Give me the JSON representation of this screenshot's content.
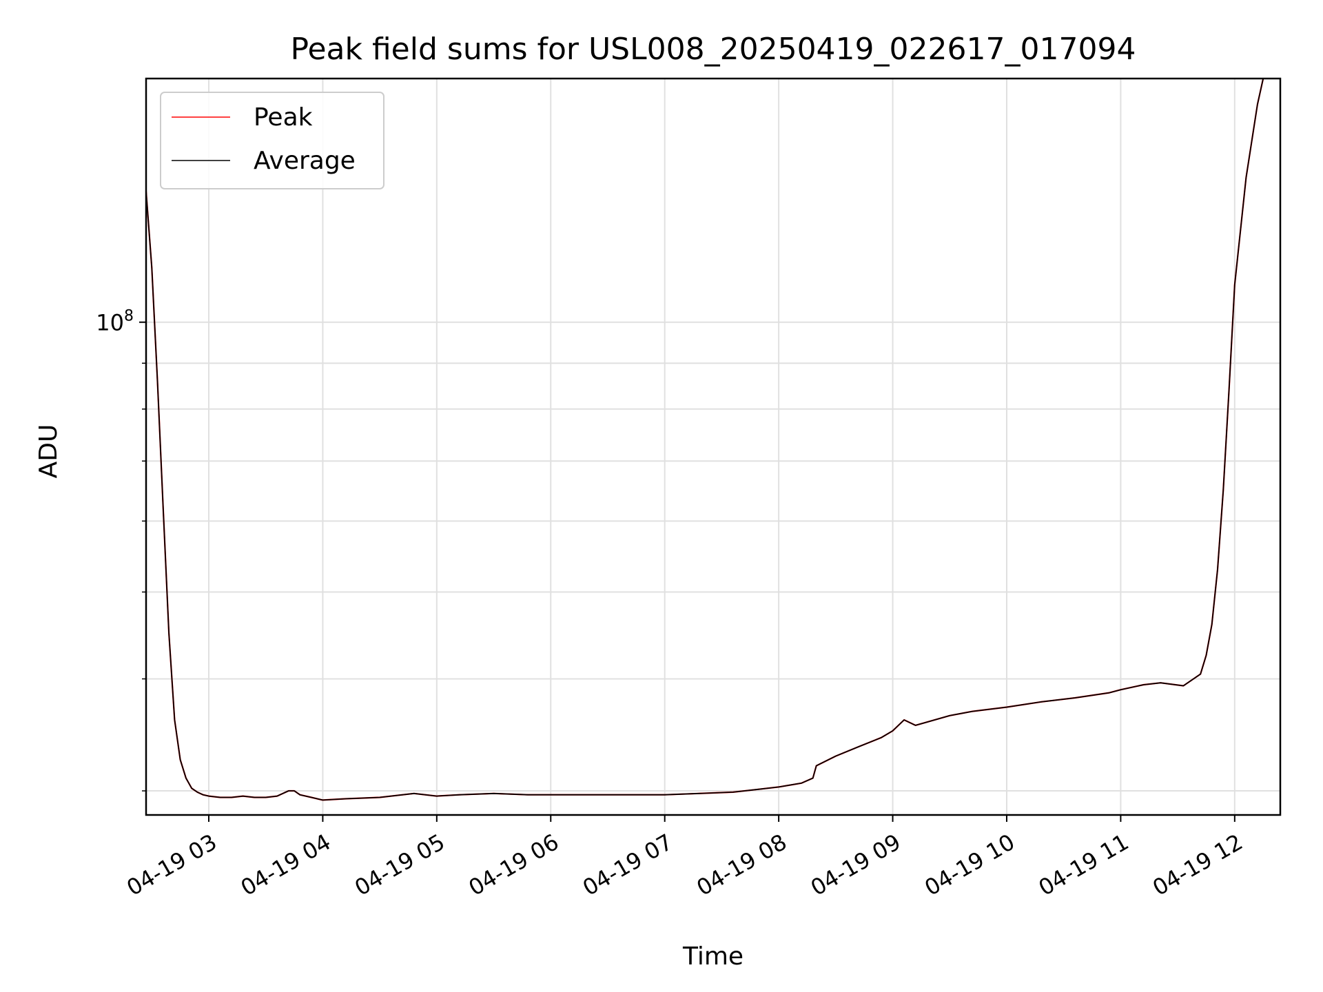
{
  "chart_data": {
    "type": "line",
    "title": "Peak field sums for USL008_20250419_022617_017094",
    "xlabel": "Time",
    "ylabel": "ADU",
    "yscale": "log",
    "xlim": [
      2.45,
      12.4
    ],
    "ylim": [
      28200000.0,
      187000000.0
    ],
    "x_unit": "hour of day on 04-19",
    "x_ticks": [
      {
        "value": 3,
        "label": "04-19 03"
      },
      {
        "value": 4,
        "label": "04-19 04"
      },
      {
        "value": 5,
        "label": "04-19 05"
      },
      {
        "value": 6,
        "label": "04-19 06"
      },
      {
        "value": 7,
        "label": "04-19 07"
      },
      {
        "value": 8,
        "label": "04-19 08"
      },
      {
        "value": 9,
        "label": "04-19 09"
      },
      {
        "value": 10,
        "label": "04-19 10"
      },
      {
        "value": 11,
        "label": "04-19 11"
      },
      {
        "value": 12,
        "label": "04-19 12"
      }
    ],
    "y_major_ticks": [
      {
        "value": 100000000.0,
        "base": "10",
        "exponent": "8"
      }
    ],
    "y_minor_ticks": [
      30000000.0,
      40000000.0,
      50000000.0,
      60000000.0,
      70000000.0,
      80000000.0,
      90000000.0
    ],
    "grid": true,
    "legend_position": "top-left",
    "series": [
      {
        "name": "Peak",
        "color": "#ff0000",
        "x": [
          2.45,
          2.5,
          2.55,
          2.6,
          2.65,
          2.7,
          2.75,
          2.8,
          2.85,
          2.9,
          2.95,
          3.0,
          3.1,
          3.2,
          3.3,
          3.4,
          3.5,
          3.6,
          3.7,
          3.75,
          3.8,
          3.9,
          4.0,
          4.2,
          4.5,
          4.8,
          5.0,
          5.2,
          5.5,
          5.8,
          6.0,
          6.3,
          6.6,
          7.0,
          7.3,
          7.6,
          7.8,
          8.0,
          8.2,
          8.3,
          8.33,
          8.5,
          8.7,
          8.9,
          9.0,
          9.1,
          9.2,
          9.3,
          9.5,
          9.7,
          10.0,
          10.3,
          10.6,
          10.9,
          11.0,
          11.2,
          11.35,
          11.55,
          11.7,
          11.75,
          11.8,
          11.85,
          11.9,
          11.95,
          12.0,
          12.1,
          12.2,
          12.25
        ],
        "y": [
          140000000.0,
          115000000.0,
          86000000.0,
          62000000.0,
          45000000.0,
          36000000.0,
          32500000.0,
          31000000.0,
          30200000.0,
          29900000.0,
          29700000.0,
          29600000.0,
          29500000.0,
          29500000.0,
          29600000.0,
          29500000.0,
          29500000.0,
          29600000.0,
          30000000.0,
          30000000.0,
          29700000.0,
          29500000.0,
          29300000.0,
          29400000.0,
          29500000.0,
          29800000.0,
          29600000.0,
          29700000.0,
          29800000.0,
          29700000.0,
          29700000.0,
          29700000.0,
          29700000.0,
          29700000.0,
          29800000.0,
          29900000.0,
          30100000.0,
          30300000.0,
          30600000.0,
          31000000.0,
          32000000.0,
          32800000.0,
          33600000.0,
          34400000.0,
          35000000.0,
          36000000.0,
          35500000.0,
          35800000.0,
          36400000.0,
          36800000.0,
          37200000.0,
          37700000.0,
          38100000.0,
          38600000.0,
          38900000.0,
          39400000.0,
          39600000.0,
          39300000.0,
          40500000.0,
          42500000.0,
          46000000.0,
          53000000.0,
          65000000.0,
          84000000.0,
          110000000.0,
          145000000.0,
          175000000.0,
          187000000.0
        ]
      },
      {
        "name": "Average",
        "color": "#000000",
        "x": [
          2.45,
          2.5,
          2.55,
          2.6,
          2.65,
          2.7,
          2.75,
          2.8,
          2.85,
          2.9,
          2.95,
          3.0,
          3.1,
          3.2,
          3.3,
          3.4,
          3.5,
          3.6,
          3.7,
          3.75,
          3.8,
          3.9,
          4.0,
          4.2,
          4.5,
          4.8,
          5.0,
          5.2,
          5.5,
          5.8,
          6.0,
          6.3,
          6.6,
          7.0,
          7.3,
          7.6,
          7.8,
          8.0,
          8.2,
          8.3,
          8.33,
          8.5,
          8.7,
          8.9,
          9.0,
          9.1,
          9.2,
          9.3,
          9.5,
          9.7,
          10.0,
          10.3,
          10.6,
          10.9,
          11.0,
          11.2,
          11.35,
          11.55,
          11.7,
          11.75,
          11.8,
          11.85,
          11.9,
          11.95,
          12.0,
          12.1,
          12.2,
          12.25
        ],
        "y": [
          140000000.0,
          115000000.0,
          86000000.0,
          62000000.0,
          45000000.0,
          36000000.0,
          32500000.0,
          31000000.0,
          30200000.0,
          29900000.0,
          29700000.0,
          29600000.0,
          29500000.0,
          29500000.0,
          29600000.0,
          29500000.0,
          29500000.0,
          29600000.0,
          30000000.0,
          30000000.0,
          29700000.0,
          29500000.0,
          29300000.0,
          29400000.0,
          29500000.0,
          29800000.0,
          29600000.0,
          29700000.0,
          29800000.0,
          29700000.0,
          29700000.0,
          29700000.0,
          29700000.0,
          29700000.0,
          29800000.0,
          29900000.0,
          30100000.0,
          30300000.0,
          30600000.0,
          31000000.0,
          32000000.0,
          32800000.0,
          33600000.0,
          34400000.0,
          35000000.0,
          36000000.0,
          35500000.0,
          35800000.0,
          36400000.0,
          36800000.0,
          37200000.0,
          37700000.0,
          38100000.0,
          38600000.0,
          38900000.0,
          39400000.0,
          39600000.0,
          39300000.0,
          40500000.0,
          42500000.0,
          46000000.0,
          53000000.0,
          65000000.0,
          84000000.0,
          110000000.0,
          145000000.0,
          175000000.0,
          187000000.0
        ]
      }
    ]
  }
}
